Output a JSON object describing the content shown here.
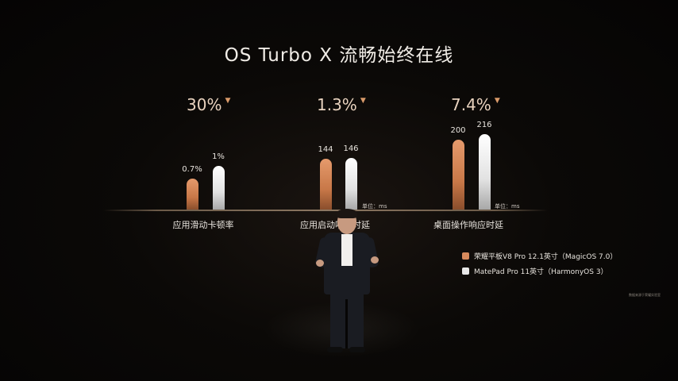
{
  "title": "OS Turbo X 流畅始终在线",
  "chart_data": {
    "type": "bar",
    "groups": [
      {
        "category": "应用滑动卡顿率",
        "improvement": "30%",
        "unit": "",
        "values": [
          0.7,
          1
        ],
        "value_labels": [
          "0.7%",
          "1%"
        ]
      },
      {
        "category": "应用启动响应时延",
        "improvement": "1.3%",
        "unit": "单位：ms",
        "values": [
          144,
          146
        ],
        "value_labels": [
          "144",
          "146"
        ]
      },
      {
        "category": "桌面操作响应时延",
        "improvement": "7.4%",
        "unit": "单位：ms",
        "values": [
          200,
          216
        ],
        "value_labels": [
          "200",
          "216"
        ]
      }
    ],
    "series": [
      {
        "name": "荣耀平板V8 Pro 12.1英寸（MagicOS 7.0）",
        "color": "#d88a5c"
      },
      {
        "name": "MatePad Pro 11英寸（HarmonyOS 3）",
        "color": "#e8e8e8"
      }
    ],
    "improvement_marker": "down-triangle-icon"
  },
  "footnote": "数据来源于荣耀实验室"
}
